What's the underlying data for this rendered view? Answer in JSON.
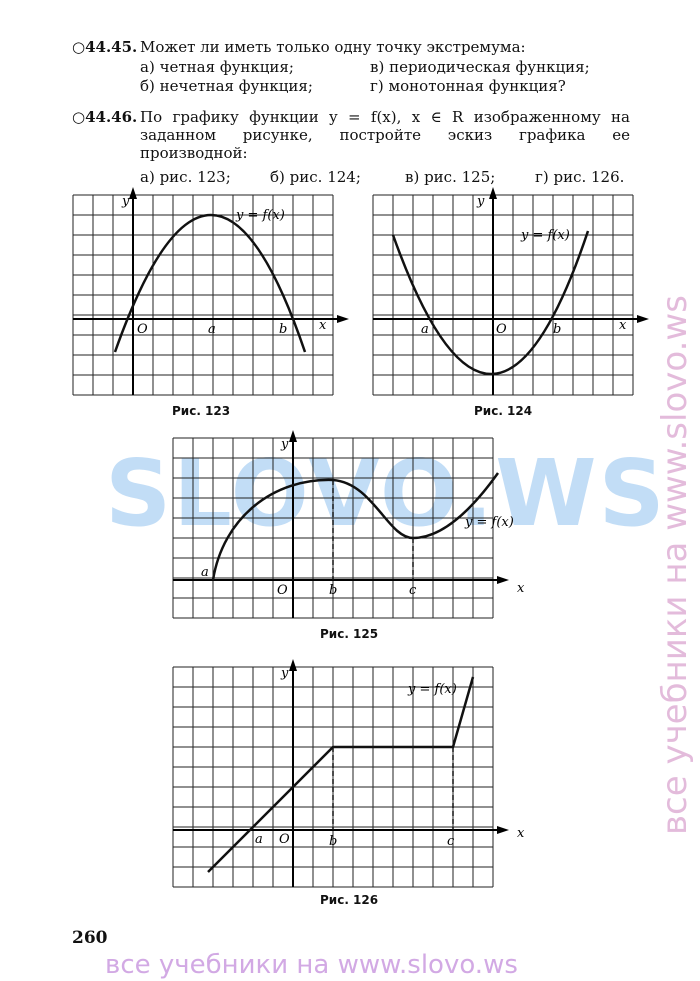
{
  "problems": [
    {
      "number": "○44.45.",
      "text": "Может ли иметь только одну точку экстремума:",
      "options": [
        "а) четная функция;",
        "в) периодическая функция;",
        "б) нечетная функция;",
        "г) монотонная функция?"
      ]
    },
    {
      "number": "○44.46.",
      "text": "По графику функции y = f(x), x ∈ R изображенному на заданном рисунке, постройте эскиз графика ее производной:",
      "options": [
        "а) рис. 123;",
        "б) рис. 124;",
        "в) рис. 125;",
        "г) рис. 126."
      ]
    }
  ],
  "figures": [
    {
      "caption": "Рис. 123",
      "labels": [
        "y",
        "y = f(x)",
        "O",
        "a",
        "b",
        "x"
      ]
    },
    {
      "caption": "Рис. 124",
      "labels": [
        "y",
        "y = f(x)",
        "a",
        "O",
        "b",
        "x"
      ]
    },
    {
      "caption": "Рис. 125",
      "labels": [
        "y",
        "y = f(x)",
        "a",
        "O",
        "b",
        "c",
        "x"
      ]
    },
    {
      "caption": "Рис. 126",
      "labels": [
        "y",
        "y = f(x)",
        "a",
        "O",
        "b",
        "c",
        "x"
      ]
    }
  ],
  "page_number": "260",
  "watermark": "SLOVO.WS",
  "side_watermark": "все учебники на www.slovo.ws",
  "footer": "все учебники на www.slovo.ws"
}
